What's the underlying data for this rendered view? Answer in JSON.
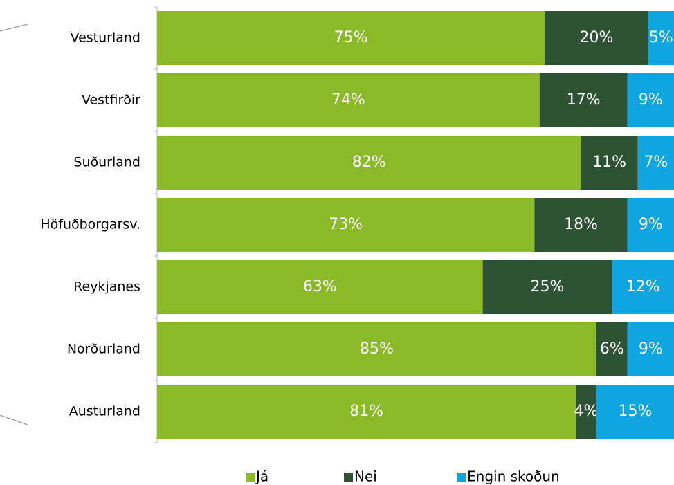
{
  "chart_data": {
    "type": "bar",
    "orientation": "horizontal",
    "stacked": true,
    "categories": [
      "Vesturland",
      "Vestfirðir",
      "Suðurland",
      "Höfuðborgarsv.",
      "Reykjanes",
      "Norðurland",
      "Austurland"
    ],
    "series": [
      {
        "name": "Já",
        "color": "#8aba27",
        "values": [
          75,
          74,
          82,
          73,
          63,
          85,
          81
        ],
        "value_labels": [
          "75%",
          "74%",
          "82%",
          "73%",
          "63%",
          "85%",
          "81%"
        ]
      },
      {
        "name": "Nei",
        "color": "#2e5234",
        "values": [
          20,
          17,
          11,
          18,
          25,
          6,
          4
        ],
        "value_labels": [
          "20%",
          "17%",
          "11%",
          "18%",
          "25%",
          "6%",
          "4%"
        ]
      },
      {
        "name": "Engin skoðun",
        "color": "#0ea5e0",
        "values": [
          5,
          9,
          7,
          9,
          12,
          9,
          15
        ],
        "value_labels": [
          "5%",
          "9%",
          "7%",
          "9%",
          "12%",
          "9%",
          "15%"
        ]
      }
    ],
    "xlim": [
      0,
      100
    ],
    "legend": "bottom"
  }
}
